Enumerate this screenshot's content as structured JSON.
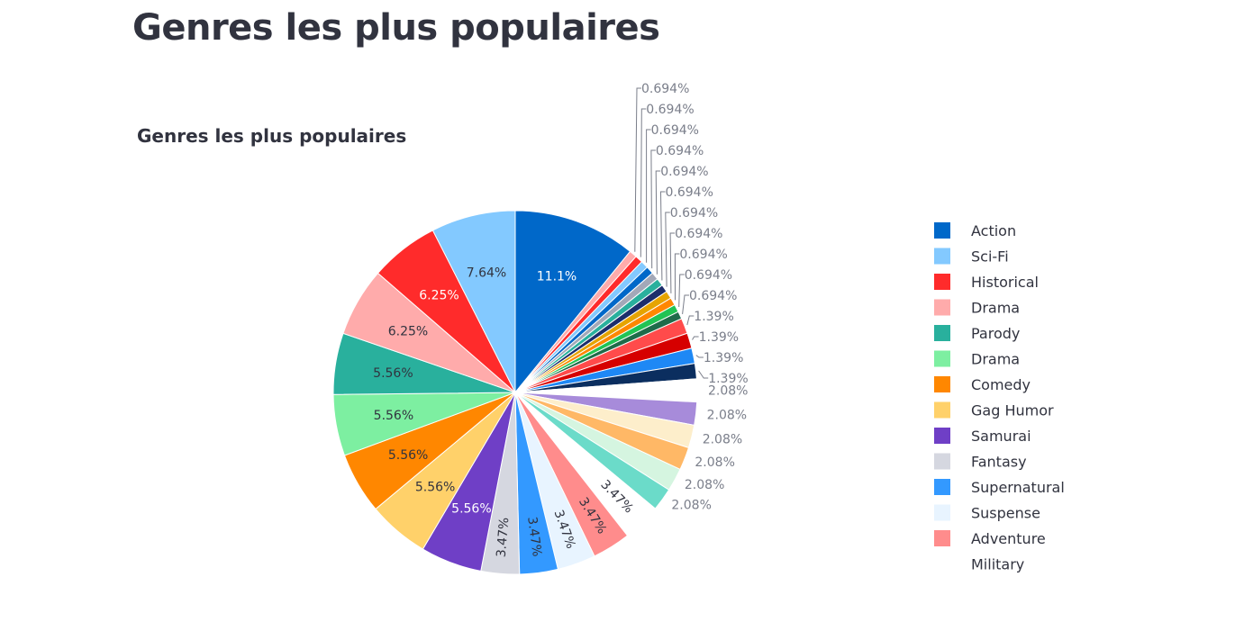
{
  "page": {
    "title": "Genres les plus populaires"
  },
  "chart_data": {
    "type": "pie",
    "title": "Genres les plus populaires",
    "legend_position": "right",
    "legend": [
      "Action",
      "Sci-Fi",
      "Historical",
      "Drama",
      "Parody",
      "Drama",
      "Comedy",
      "Gag Humor",
      "Samurai",
      "Fantasy",
      "Supernatural",
      "Suspense",
      "Adventure",
      "Military"
    ],
    "slices": [
      {
        "label": "11.1%",
        "value": 11.1,
        "color": "#0068c9",
        "text_color": "#ffffff",
        "label_mode": "inside"
      },
      {
        "label": "0.694%",
        "value": 0.694,
        "color": "#ffabab",
        "label_mode": "outside"
      },
      {
        "label": "0.694%",
        "value": 0.694,
        "color": "#ff2b2b",
        "label_mode": "outside"
      },
      {
        "label": "0.694%",
        "value": 0.694,
        "color": "#83c9ff",
        "label_mode": "outside"
      },
      {
        "label": "0.694%",
        "value": 0.694,
        "color": "#0068c9",
        "label_mode": "outside"
      },
      {
        "label": "0.694%",
        "value": 0.694,
        "color": "#a3a8b8",
        "label_mode": "outside"
      },
      {
        "label": "0.694%",
        "value": 0.694,
        "color": "#29b09d",
        "label_mode": "outside"
      },
      {
        "label": "0.694%",
        "value": 0.694,
        "color": "#1c2e6b",
        "label_mode": "outside"
      },
      {
        "label": "0.694%",
        "value": 0.694,
        "color": "#e6a400",
        "label_mode": "outside"
      },
      {
        "label": "0.694%",
        "value": 0.694,
        "color": "#ff8700",
        "label_mode": "outside"
      },
      {
        "label": "0.694%",
        "value": 0.694,
        "color": "#21c354",
        "label_mode": "outside"
      },
      {
        "label": "0.694%",
        "value": 0.694,
        "color": "#1f6b4a",
        "label_mode": "outside"
      },
      {
        "label": "1.39%",
        "value": 1.39,
        "color": "#ff4b4b",
        "label_mode": "outside"
      },
      {
        "label": "1.39%",
        "value": 1.39,
        "color": "#d60000",
        "label_mode": "outside"
      },
      {
        "label": "1.39%",
        "value": 1.39,
        "color": "#1e88f5",
        "label_mode": "outside"
      },
      {
        "label": "1.39%",
        "value": 1.39,
        "color": "#0b2e5f",
        "label_mode": "outside"
      },
      {
        "label": "2.08%",
        "value": 2.08,
        "color": "#ffffff",
        "label_mode": "outside"
      },
      {
        "label": "2.08%",
        "value": 2.08,
        "color": "#a78bda",
        "label_mode": "outside"
      },
      {
        "label": "2.08%",
        "value": 2.08,
        "color": "#fdeecb",
        "label_mode": "outside"
      },
      {
        "label": "2.08%",
        "value": 2.08,
        "color": "#ffb866",
        "label_mode": "outside"
      },
      {
        "label": "2.08%",
        "value": 2.08,
        "color": "#d5f5e0",
        "label_mode": "outside"
      },
      {
        "label": "2.08%",
        "value": 2.08,
        "color": "#6bdbc9",
        "label_mode": "outside"
      },
      {
        "label": "3.47%",
        "value": 3.47,
        "color": "#ffffff",
        "text_color": "#31333f",
        "label_mode": "radial"
      },
      {
        "label": "3.47%",
        "value": 3.47,
        "color": "#ff8c8c",
        "text_color": "#31333f",
        "label_mode": "radial"
      },
      {
        "label": "3.47%",
        "value": 3.47,
        "color": "#e8f4ff",
        "text_color": "#31333f",
        "label_mode": "radial"
      },
      {
        "label": "3.47%",
        "value": 3.47,
        "color": "#3399ff",
        "text_color": "#31333f",
        "label_mode": "radial"
      },
      {
        "label": "3.47%",
        "value": 3.47,
        "color": "#d5d7e0",
        "text_color": "#31333f",
        "label_mode": "radial"
      },
      {
        "label": "5.56%",
        "value": 5.56,
        "color": "#6f3fc6",
        "text_color": "#ffffff",
        "label_mode": "inside"
      },
      {
        "label": "5.56%",
        "value": 5.56,
        "color": "#ffd16a",
        "text_color": "#31333f",
        "label_mode": "inside"
      },
      {
        "label": "5.56%",
        "value": 5.56,
        "color": "#ff8700",
        "text_color": "#31333f",
        "label_mode": "inside"
      },
      {
        "label": "5.56%",
        "value": 5.56,
        "color": "#7defa1",
        "text_color": "#31333f",
        "label_mode": "inside"
      },
      {
        "label": "5.56%",
        "value": 5.56,
        "color": "#29b09d",
        "text_color": "#31333f",
        "label_mode": "inside"
      },
      {
        "label": "6.25%",
        "value": 6.25,
        "color": "#ffabab",
        "text_color": "#31333f",
        "label_mode": "inside"
      },
      {
        "label": "6.25%",
        "value": 6.25,
        "color": "#ff2b2b",
        "text_color": "#ffffff",
        "label_mode": "inside"
      },
      {
        "label": "7.64%",
        "value": 7.64,
        "color": "#83c9ff",
        "text_color": "#31333f",
        "label_mode": "inside"
      }
    ],
    "legend_colors": [
      "#0068c9",
      "#83c9ff",
      "#ff2b2b",
      "#ffabab",
      "#29b09d",
      "#7defa1",
      "#ff8700",
      "#ffd16a",
      "#6f3fc6",
      "#d5d7e0",
      "#3399ff",
      "#e8f4ff",
      "#ff8c8c",
      "#ffffff"
    ]
  }
}
